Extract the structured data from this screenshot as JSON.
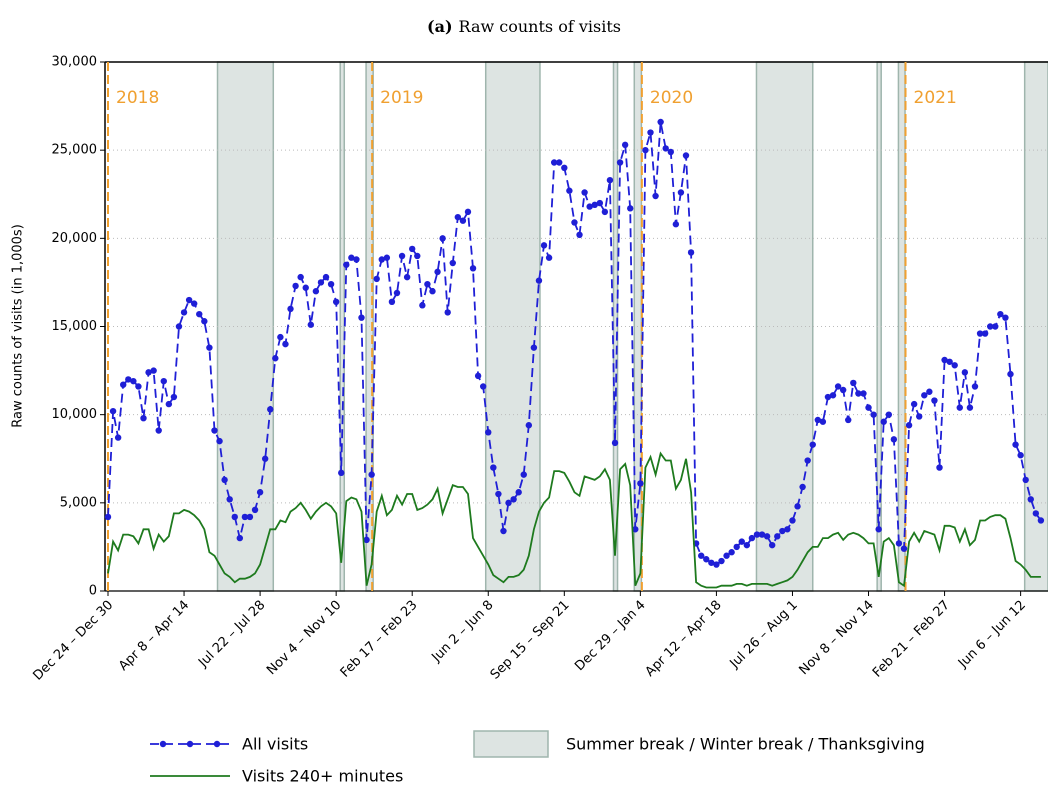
{
  "chart_data": {
    "type": "line",
    "title_prefix": "(a)",
    "title": "Raw counts of visits",
    "y_label": "Raw counts of visits (in 1,000s)",
    "categories": [
      "Dec 24 – Dec 30",
      null,
      null,
      null,
      null,
      null,
      null,
      null,
      null,
      null,
      null,
      null,
      null,
      null,
      null,
      "Apr 8 – Apr 14",
      null,
      null,
      null,
      null,
      null,
      null,
      null,
      null,
      null,
      null,
      null,
      null,
      null,
      null,
      "Jul 22 – Jul 28",
      null,
      null,
      null,
      null,
      null,
      null,
      null,
      null,
      null,
      null,
      null,
      null,
      null,
      null,
      "Nov 4 – Nov 10",
      null,
      null,
      null,
      null,
      null,
      null,
      null,
      null,
      null,
      null,
      null,
      null,
      null,
      null,
      "Feb 17 – Feb 23",
      null,
      null,
      null,
      null,
      null,
      null,
      null,
      null,
      null,
      null,
      null,
      null,
      null,
      null,
      "Jun 2 – Jun 8",
      null,
      null,
      null,
      null,
      null,
      null,
      null,
      null,
      null,
      null,
      null,
      null,
      null,
      null,
      "Sep 15 – Sep 21",
      null,
      null,
      null,
      null,
      null,
      null,
      null,
      null,
      null,
      null,
      null,
      null,
      null,
      null,
      "Dec 29 – Jan 4",
      null,
      null,
      null,
      null,
      null,
      null,
      null,
      null,
      null,
      null,
      null,
      null,
      null,
      null,
      "Apr 12 – Apr 18",
      null,
      null,
      null,
      null,
      null,
      null,
      null,
      null,
      null,
      null,
      null,
      null,
      null,
      null,
      "Jul 26 – Aug 1",
      null,
      null,
      null,
      null,
      null,
      null,
      null,
      null,
      null,
      null,
      null,
      null,
      null,
      null,
      "Nov 8 – Nov 14",
      null,
      null,
      null,
      null,
      null,
      null,
      null,
      null,
      null,
      null,
      null,
      null,
      null,
      null,
      "Feb 21 – Feb 27",
      null,
      null,
      null,
      null,
      null,
      null,
      null,
      null,
      null,
      null,
      null,
      null,
      null,
      null,
      "Jun 6 – Jun 12",
      null,
      null,
      null,
      null
    ],
    "series": [
      {
        "name": "All visits",
        "color": "#1f1fd6",
        "dashed": true,
        "markers": true,
        "values": [
          4200,
          10200,
          8700,
          11700,
          12000,
          11900,
          11600,
          9800,
          12400,
          12500,
          9100,
          11900,
          10600,
          11000,
          15000,
          15800,
          16500,
          16300,
          15700,
          15300,
          13800,
          9100,
          8500,
          6300,
          5200,
          4200,
          3000,
          4200,
          4200,
          4600,
          5600,
          7500,
          10300,
          13200,
          14400,
          14000,
          16000,
          17300,
          17800,
          17200,
          15100,
          17000,
          17500,
          17800,
          17400,
          16400,
          6700,
          18500,
          18900,
          18800,
          15500,
          2900,
          6600,
          17700,
          18800,
          18900,
          16400,
          16900,
          19000,
          17800,
          19400,
          19000,
          16200,
          17400,
          17000,
          18100,
          20000,
          15800,
          18600,
          21200,
          21000,
          21500,
          18300,
          12200,
          11600,
          9000,
          7000,
          5500,
          3400,
          5000,
          5200,
          5600,
          6600,
          9400,
          13800,
          17600,
          19600,
          18900,
          24300,
          24300,
          24000,
          22700,
          20900,
          20200,
          22600,
          21800,
          21900,
          22000,
          21500,
          23300,
          8400,
          24300,
          25300,
          21700,
          3500,
          6100,
          25000,
          26000,
          22400,
          26600,
          25100,
          24900,
          20800,
          22600,
          24700,
          19200,
          2700,
          2000,
          1800,
          1600,
          1500,
          1700,
          2000,
          2200,
          2500,
          2800,
          2600,
          3000,
          3200,
          3200,
          3100,
          2600,
          3100,
          3400,
          3500,
          4000,
          4800,
          5900,
          7400,
          8300,
          9700,
          9600,
          11000,
          11100,
          11600,
          11400,
          9700,
          11800,
          11200,
          11200,
          10400,
          10000,
          3500,
          9600,
          10000,
          8600,
          2700,
          2400,
          9400,
          10600,
          9900,
          11100,
          11300,
          10800,
          7000,
          13100,
          13000,
          12800,
          10400,
          12400,
          10400,
          11600,
          14600,
          14600,
          15000,
          15000,
          15700,
          15500,
          12300,
          8300,
          7700,
          6300,
          5200,
          4400,
          4000
        ]
      },
      {
        "name": "Visits 240+ minutes",
        "color": "#1e7a1e",
        "dashed": false,
        "markers": false,
        "values": [
          1000,
          2800,
          2300,
          3200,
          3200,
          3100,
          2700,
          3500,
          3500,
          2400,
          3200,
          2800,
          3100,
          4400,
          4400,
          4600,
          4500,
          4300,
          4000,
          3500,
          2200,
          2000,
          1500,
          1000,
          800,
          500,
          700,
          700,
          800,
          1000,
          1500,
          2500,
          3500,
          3500,
          4000,
          3900,
          4500,
          4700,
          5000,
          4600,
          4100,
          4500,
          4800,
          5000,
          4800,
          4400,
          1600,
          5100,
          5300,
          5200,
          4500,
          300,
          1500,
          4500,
          5400,
          4300,
          4600,
          5400,
          4900,
          5500,
          5500,
          4600,
          4700,
          4900,
          5200,
          5800,
          4400,
          5200,
          6000,
          5900,
          5900,
          5500,
          3000,
          2500,
          2000,
          1500,
          900,
          700,
          500,
          800,
          800,
          900,
          1200,
          2000,
          3500,
          4500,
          5000,
          5300,
          6800,
          6800,
          6700,
          6200,
          5600,
          5400,
          6500,
          6400,
          6300,
          6500,
          6900,
          6300,
          2000,
          6900,
          7200,
          6000,
          300,
          1000,
          7000,
          7600,
          6600,
          7800,
          7400,
          7400,
          5800,
          6300,
          7500,
          5600,
          500,
          300,
          200,
          200,
          200,
          300,
          300,
          300,
          400,
          400,
          300,
          400,
          400,
          400,
          400,
          300,
          400,
          500,
          600,
          800,
          1200,
          1700,
          2200,
          2500,
          2500,
          3000,
          3000,
          3200,
          3300,
          2900,
          3200,
          3300,
          3200,
          3000,
          2700,
          2700,
          800,
          2800,
          3000,
          2600,
          500,
          300,
          2800,
          3300,
          2800,
          3400,
          3300,
          3200,
          2300,
          3700,
          3700,
          3600,
          2800,
          3500,
          2600,
          2900,
          4000,
          4000,
          4200,
          4300,
          4300,
          4100,
          3000,
          1700,
          1500,
          1200,
          800,
          800,
          800
        ]
      }
    ],
    "ylim": [
      0,
      30000
    ],
    "yticks": [
      0,
      {
        "value": 5000,
        "label": "5,000"
      },
      {
        "value": 10000,
        "label": "10,000"
      },
      {
        "value": 15000,
        "label": "15,000"
      },
      {
        "value": 20000,
        "label": "20,000"
      },
      {
        "value": 25000,
        "label": "25,000"
      },
      {
        "value": 30000,
        "label": "30,000"
      }
    ],
    "grid": true,
    "shaded_spans": {
      "name": "Summer break / Winter break / Thanksgiving",
      "color": "#dde4e2",
      "edge": "#9fb5ad",
      "spans": [
        [
          21.6,
          32.6
        ],
        [
          45.8,
          46.6
        ],
        [
          50.9,
          52.3
        ],
        [
          74.5,
          85.2
        ],
        [
          99.7,
          100.5
        ],
        [
          103.8,
          105.2
        ],
        [
          127.9,
          139.0
        ],
        [
          151.7,
          152.5
        ],
        [
          155.9,
          157.2
        ],
        [
          180.8,
          185.4
        ]
      ]
    },
    "year_markers": {
      "color": "#f0a030",
      "items": [
        {
          "label": "2018",
          "x": 0
        },
        {
          "label": "2019",
          "x": 52.1
        },
        {
          "label": "2020",
          "x": 105.3
        },
        {
          "label": "2021",
          "x": 157.3
        }
      ]
    }
  }
}
